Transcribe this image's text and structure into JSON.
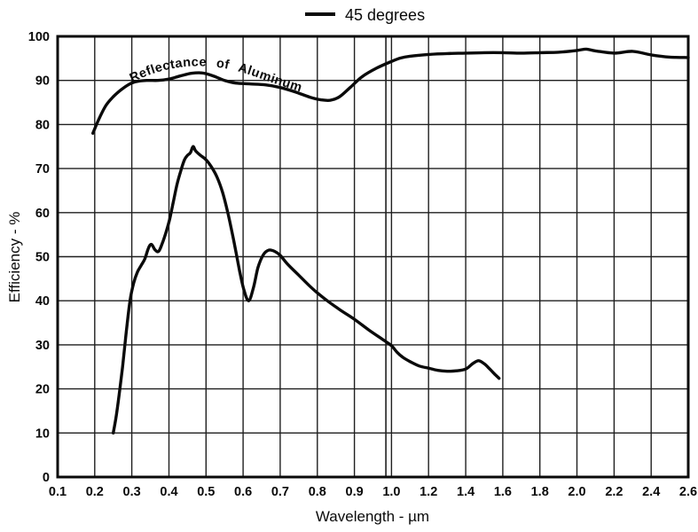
{
  "chart_data": {
    "type": "line",
    "title": "",
    "xlabel": "Wavelength - µm",
    "ylabel": "Efficiency - %",
    "xlim": [
      0.1,
      2.6
    ],
    "ylim": [
      0,
      100
    ],
    "grid": "on",
    "x_scale_note": "equal spacing per division: 0.1 steps from 0.1 to 1.0, 0.2 steps from 1.0 to 2.6",
    "x_tick_labels": [
      "0.1",
      "0.2",
      "0.3",
      "0.4",
      "0.5",
      "0.6",
      "0.7",
      "0.8",
      "0.9",
      "1.0",
      "1.2",
      "1.4",
      "1.6",
      "1.8",
      "2.0",
      "2.2",
      "2.4",
      "2.6"
    ],
    "x_tick_values": [
      0.1,
      0.2,
      0.3,
      0.4,
      0.5,
      0.6,
      0.7,
      0.8,
      0.9,
      1.0,
      1.2,
      1.4,
      1.6,
      1.8,
      2.0,
      2.2,
      2.4,
      2.6
    ],
    "y_tick_labels": [
      "0",
      "10",
      "20",
      "30",
      "40",
      "50",
      "60",
      "70",
      "80",
      "90",
      "100"
    ],
    "y_tick_values": [
      0,
      10,
      20,
      30,
      40,
      50,
      60,
      70,
      80,
      90,
      100
    ],
    "extra_vertical_line_x": 0.985,
    "legend": {
      "position": "top-center",
      "entries": [
        "45 degrees"
      ]
    },
    "series": [
      {
        "name": "Reflectance of Aluminum",
        "points": [
          [
            0.195,
            78
          ],
          [
            0.21,
            81
          ],
          [
            0.23,
            84.3
          ],
          [
            0.25,
            86.3
          ],
          [
            0.27,
            87.8
          ],
          [
            0.29,
            89
          ],
          [
            0.31,
            89.7
          ],
          [
            0.34,
            90
          ],
          [
            0.37,
            90
          ],
          [
            0.4,
            90.3
          ],
          [
            0.43,
            91
          ],
          [
            0.46,
            91.6
          ],
          [
            0.49,
            91.7
          ],
          [
            0.52,
            91
          ],
          [
            0.55,
            90
          ],
          [
            0.58,
            89.4
          ],
          [
            0.62,
            89.2
          ],
          [
            0.66,
            89
          ],
          [
            0.7,
            88.4
          ],
          [
            0.74,
            87.4
          ],
          [
            0.78,
            86.2
          ],
          [
            0.81,
            85.6
          ],
          [
            0.835,
            85.5
          ],
          [
            0.86,
            86.3
          ],
          [
            0.89,
            88.5
          ],
          [
            0.92,
            90.8
          ],
          [
            0.96,
            92.8
          ],
          [
            1.0,
            94.3
          ],
          [
            1.05,
            95.1
          ],
          [
            1.1,
            95.5
          ],
          [
            1.2,
            95.9
          ],
          [
            1.3,
            96.1
          ],
          [
            1.4,
            96.2
          ],
          [
            1.5,
            96.3
          ],
          [
            1.6,
            96.3
          ],
          [
            1.7,
            96.2
          ],
          [
            1.8,
            96.3
          ],
          [
            1.9,
            96.4
          ],
          [
            2.0,
            96.8
          ],
          [
            2.05,
            97.1
          ],
          [
            2.1,
            96.7
          ],
          [
            2.2,
            96.2
          ],
          [
            2.3,
            96.6
          ],
          [
            2.4,
            95.8
          ],
          [
            2.5,
            95.3
          ],
          [
            2.6,
            95.2
          ]
        ]
      },
      {
        "name": "45 degrees",
        "points": [
          [
            0.25,
            10
          ],
          [
            0.26,
            15
          ],
          [
            0.275,
            25
          ],
          [
            0.285,
            33
          ],
          [
            0.295,
            40
          ],
          [
            0.305,
            44
          ],
          [
            0.315,
            46.5
          ],
          [
            0.325,
            48
          ],
          [
            0.335,
            49.5
          ],
          [
            0.345,
            52
          ],
          [
            0.353,
            52.8
          ],
          [
            0.362,
            51.6
          ],
          [
            0.372,
            51.2
          ],
          [
            0.382,
            53
          ],
          [
            0.392,
            55.5
          ],
          [
            0.402,
            58.5
          ],
          [
            0.412,
            62.5
          ],
          [
            0.422,
            66.5
          ],
          [
            0.432,
            69.5
          ],
          [
            0.442,
            72
          ],
          [
            0.45,
            73
          ],
          [
            0.458,
            73.6
          ],
          [
            0.465,
            75
          ],
          [
            0.472,
            74
          ],
          [
            0.485,
            73
          ],
          [
            0.5,
            72
          ],
          [
            0.515,
            70.3
          ],
          [
            0.53,
            68
          ],
          [
            0.545,
            64.5
          ],
          [
            0.56,
            59.5
          ],
          [
            0.575,
            53.5
          ],
          [
            0.59,
            47
          ],
          [
            0.602,
            42.5
          ],
          [
            0.615,
            40
          ],
          [
            0.628,
            43
          ],
          [
            0.64,
            47.5
          ],
          [
            0.655,
            50.5
          ],
          [
            0.67,
            51.5
          ],
          [
            0.685,
            51.2
          ],
          [
            0.7,
            50.3
          ],
          [
            0.72,
            48.3
          ],
          [
            0.75,
            45.8
          ],
          [
            0.78,
            43.3
          ],
          [
            0.8,
            41.8
          ],
          [
            0.83,
            39.8
          ],
          [
            0.86,
            38
          ],
          [
            0.9,
            35.8
          ],
          [
            0.94,
            33.3
          ],
          [
            0.98,
            31
          ],
          [
            1.0,
            29.8
          ],
          [
            1.03,
            28.3
          ],
          [
            1.06,
            27.2
          ],
          [
            1.1,
            26.2
          ],
          [
            1.15,
            25.2
          ],
          [
            1.2,
            24.7
          ],
          [
            1.25,
            24.2
          ],
          [
            1.3,
            24
          ],
          [
            1.35,
            24.1
          ],
          [
            1.4,
            24.5
          ],
          [
            1.44,
            25.8
          ],
          [
            1.47,
            26.4
          ],
          [
            1.5,
            25.7
          ],
          [
            1.53,
            24.5
          ],
          [
            1.56,
            23.2
          ],
          [
            1.58,
            22.4
          ]
        ]
      }
    ],
    "colors": {
      "curve": "#0a0a0a",
      "grid": "#1f1f1f",
      "background": "#ffffff"
    }
  }
}
